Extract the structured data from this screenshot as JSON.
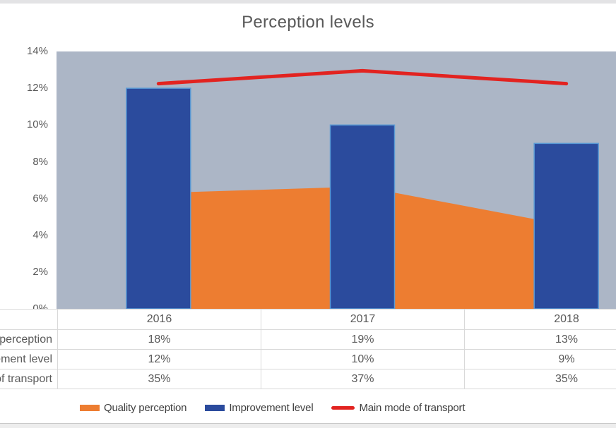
{
  "title": "Perception levels",
  "chart_data": {
    "type": "combo",
    "categories": [
      "2016",
      "2017",
      "2018"
    ],
    "series": [
      {
        "name": "Quality perception",
        "type": "area",
        "axis": "secondary",
        "color": "#ed7d31",
        "values": [
          18,
          19,
          13
        ],
        "values_display": [
          "18%",
          "19%",
          "13%"
        ]
      },
      {
        "name": "Improvement level",
        "type": "bar",
        "axis": "primary",
        "color": "#2b4b9d",
        "border_color": "#5b9bd5",
        "values": [
          12,
          10,
          9
        ],
        "values_display": [
          "12%",
          "10%",
          "9%"
        ]
      },
      {
        "name": "Main mode of transport",
        "type": "line",
        "axis": "secondary",
        "color": "#e22320",
        "values": [
          35,
          37,
          35
        ],
        "values_display": [
          "35%",
          "37%",
          "35%"
        ]
      }
    ],
    "primary_axis": {
      "min": 0,
      "max": 14,
      "tick_step": 2,
      "tick_labels_top_to_bottom": [
        "14%",
        "12%",
        "10%",
        "8%",
        "6%",
        "4%",
        "2%",
        "0%"
      ]
    },
    "secondary_axis": {
      "min": 0,
      "max": 40,
      "visible": false
    },
    "plot_background": "#acb6c6",
    "grid": false,
    "legend_position": "bottom",
    "data_table_shown": true
  }
}
